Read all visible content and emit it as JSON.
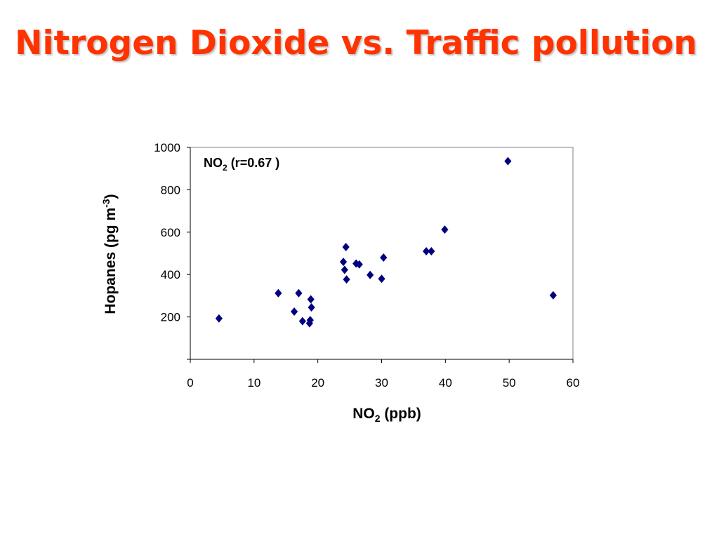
{
  "slide": {
    "title": "Nitrogen Dioxide vs. Traffic pollution",
    "title_color": "#ff3300"
  },
  "chart_data": {
    "type": "scatter",
    "annotation": {
      "main": "NO",
      "sub": "2",
      "rest": " (r=0.67 )"
    },
    "xlabel": {
      "main": "NO",
      "sub": "2",
      "rest": " (ppb)"
    },
    "ylabel": {
      "main": "Hopanes (pg m",
      "sup": "-3",
      "rest": ")"
    },
    "xlim": [
      0,
      60
    ],
    "ylim": [
      0,
      1000
    ],
    "xticks": [
      0,
      10,
      20,
      30,
      40,
      50,
      60
    ],
    "yticks": [
      200,
      400,
      600,
      800,
      1000
    ],
    "grid": false,
    "marker_color": "#000080",
    "series": [
      {
        "points": [
          {
            "x": 4.5,
            "y": 193
          },
          {
            "x": 13.8,
            "y": 312
          },
          {
            "x": 16.3,
            "y": 225
          },
          {
            "x": 17.0,
            "y": 312
          },
          {
            "x": 17.6,
            "y": 180
          },
          {
            "x": 18.7,
            "y": 170
          },
          {
            "x": 18.8,
            "y": 185
          },
          {
            "x": 18.9,
            "y": 283
          },
          {
            "x": 19.0,
            "y": 245
          },
          {
            "x": 24.0,
            "y": 460
          },
          {
            "x": 24.2,
            "y": 422
          },
          {
            "x": 24.4,
            "y": 530
          },
          {
            "x": 24.5,
            "y": 377
          },
          {
            "x": 26.0,
            "y": 452
          },
          {
            "x": 26.5,
            "y": 448
          },
          {
            "x": 28.2,
            "y": 398
          },
          {
            "x": 30.0,
            "y": 380
          },
          {
            "x": 30.3,
            "y": 480
          },
          {
            "x": 37.0,
            "y": 510
          },
          {
            "x": 37.8,
            "y": 510
          },
          {
            "x": 39.9,
            "y": 612
          },
          {
            "x": 49.8,
            "y": 935
          },
          {
            "x": 56.9,
            "y": 302
          }
        ]
      }
    ]
  }
}
